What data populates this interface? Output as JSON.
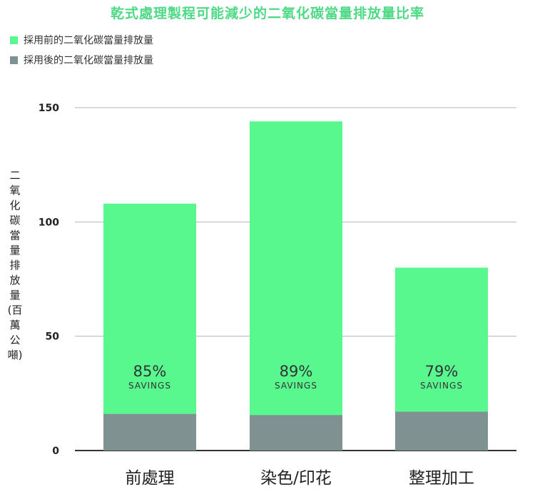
{
  "chart_data": {
    "type": "bar",
    "stacked": true,
    "title": "乾式處理製程可能減少的二氧化碳當量排放量比率",
    "ylabel": "二氧化碳當量排放量(百萬公噸)",
    "xlabel": "",
    "categories": [
      "前處理",
      "染色/印花",
      "整理加工"
    ],
    "series": [
      {
        "name": "採用後的二氧化碳當量排放量",
        "values": [
          16,
          15.5,
          17
        ],
        "color": "#7f9191"
      },
      {
        "name": "採用前的二氧化碳當量排放量",
        "values": [
          108,
          144,
          80
        ],
        "color": "#58f88f"
      }
    ],
    "annotations": [
      {
        "percent": "85%",
        "label": "SAVINGS"
      },
      {
        "percent": "89%",
        "label": "SAVINGS"
      },
      {
        "percent": "79%",
        "label": "SAVINGS"
      }
    ],
    "yticks": [
      "0",
      "50",
      "100",
      "150"
    ],
    "ylim": [
      0,
      150
    ],
    "grid": true,
    "legend": "top-left"
  }
}
